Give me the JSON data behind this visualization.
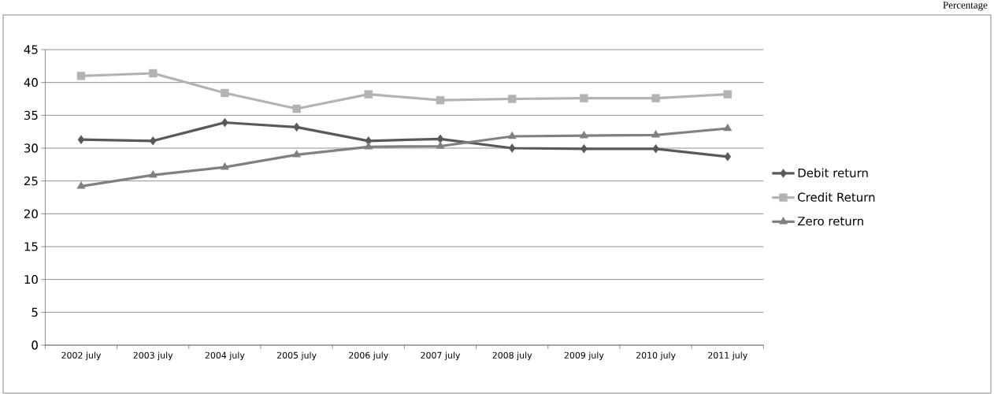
{
  "chart_data": {
    "type": "line",
    "categories": [
      "2002 july",
      "2003 july",
      "2004 july",
      "2005 july",
      "2006 july",
      "2007 july",
      "2008 july",
      "2009 july",
      "2010 july",
      "2011 july"
    ],
    "series": [
      {
        "name": "Debit return",
        "color": "#595959",
        "marker": "diamond",
        "values": [
          31.3,
          31.1,
          33.9,
          33.2,
          31.1,
          31.4,
          30.0,
          29.9,
          29.9,
          28.7
        ]
      },
      {
        "name": "Credit Return",
        "color": "#b3b3b3",
        "marker": "square",
        "values": [
          41.0,
          41.4,
          38.4,
          36.0,
          38.2,
          37.3,
          37.5,
          37.6,
          37.6,
          38.2
        ]
      },
      {
        "name": "Zero return",
        "color": "#808080",
        "marker": "triangle",
        "values": [
          24.2,
          25.9,
          27.1,
          29.0,
          30.2,
          30.3,
          31.8,
          31.9,
          32.0,
          33.0
        ]
      }
    ],
    "ylim": [
      0,
      45
    ],
    "yticks": [
      0,
      5,
      10,
      15,
      20,
      25,
      30,
      35,
      40,
      45
    ],
    "grid": "y",
    "legend": "right",
    "annotations": [
      "Percentage"
    ]
  }
}
